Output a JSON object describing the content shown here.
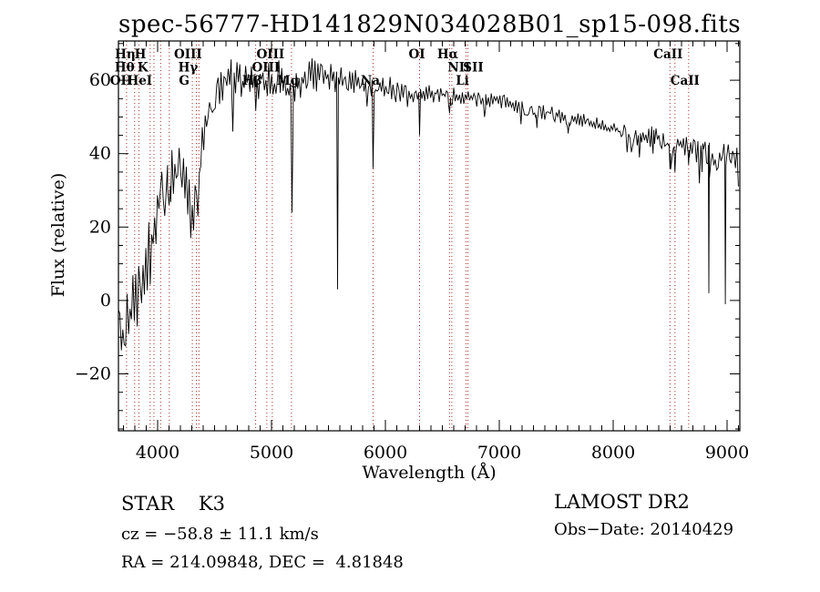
{
  "chart_data": {
    "type": "line",
    "title": "spec-56777-HD141829N034028B01_sp15-098.fits",
    "xlabel": "Wavelength (Å)",
    "ylabel": "Flux (relative)",
    "xlim": [
      3656,
      9112
    ],
    "ylim": [
      -35.5,
      70.7
    ],
    "xticks": [
      4000,
      5000,
      6000,
      7000,
      8000,
      9000
    ],
    "xtick_minor_step": 100,
    "yticks": [
      -20,
      0,
      20,
      40,
      60
    ],
    "ytick_minor_step": 5,
    "grid": false,
    "curve_color": "#000000",
    "marker_line_color": "#aa2a22",
    "seed": 11,
    "spectral_lines": [
      {
        "label": "Hη",
        "wavelength": 3835,
        "row": 1,
        "dx": -15
      },
      {
        "label": "H",
        "wavelength": 3968,
        "row": 1,
        "dx": -15
      },
      {
        "label": "Hθ",
        "wavelength": 3798,
        "row": 2,
        "dx": -11
      },
      {
        "label": "K",
        "wavelength": 3934,
        "row": 2,
        "dx": -8
      },
      {
        "label": "OII",
        "wavelength": 3727,
        "row": 3,
        "dx": -6
      },
      {
        "label": "HeI",
        "wavelength": 4026,
        "row": 3,
        "dx": -23
      },
      {
        "label": "OIII",
        "wavelength": 4363,
        "row": 1,
        "dx": -12
      },
      {
        "label": "Hγ",
        "wavelength": 4340,
        "row": 2,
        "dx": -9
      },
      {
        "label": "G",
        "wavelength": 4305,
        "row": 3,
        "dx": -9
      },
      {
        "label": "OIII",
        "wavelength": 4959,
        "row": 1,
        "dx": 4
      },
      {
        "label": "OIII",
        "wavelength": 5007,
        "row": 2,
        "dx": -7
      },
      {
        "label": "Hβ",
        "wavelength": 4861,
        "row": 3,
        "dx": -4
      },
      {
        "label": "Mg",
        "wavelength": 5175,
        "row": 3,
        "dx": -4
      },
      {
        "label": "Na",
        "wavelength": 5892,
        "row": 3,
        "dx": -3
      },
      {
        "label": "OI",
        "wavelength": 6300,
        "row": 1,
        "dx": -3
      },
      {
        "label": "Hα",
        "wavelength": 6563,
        "row": 1,
        "dx": -2
      },
      {
        "label": "NII",
        "wavelength": 6583,
        "row": 2,
        "dx": 8
      },
      {
        "label": "SII",
        "wavelength": 6724,
        "row": 2,
        "dx": 6
      },
      {
        "label": "Li",
        "wavelength": 6708,
        "row": 3,
        "dx": -4
      },
      {
        "label": "CaII",
        "wavelength": 8498,
        "row": 1,
        "dx": -2
      },
      {
        "label": "CaII",
        "wavelength": 8662,
        "row": 3,
        "dx": -4
      }
    ],
    "unlabeled_lines": [
      4102,
      8542
    ],
    "continuum": [
      [
        3656,
        -2
      ],
      [
        3678,
        -12
      ],
      [
        3700,
        -12
      ],
      [
        3727,
        -9
      ],
      [
        3760,
        -4
      ],
      [
        3800,
        1
      ],
      [
        3840,
        5
      ],
      [
        3880,
        8
      ],
      [
        3920,
        12
      ],
      [
        3955,
        16
      ],
      [
        3985,
        21
      ],
      [
        4010,
        31
      ],
      [
        4050,
        34
      ],
      [
        4090,
        31
      ],
      [
        4130,
        34
      ],
      [
        4170,
        36
      ],
      [
        4210,
        35
      ],
      [
        4250,
        31
      ],
      [
        4285,
        28
      ],
      [
        4320,
        24
      ],
      [
        4350,
        28
      ],
      [
        4380,
        38
      ],
      [
        4420,
        48
      ],
      [
        4460,
        54
      ],
      [
        4510,
        57
      ],
      [
        4560,
        59
      ],
      [
        4620,
        60
      ],
      [
        4680,
        61
      ],
      [
        4740,
        59
      ],
      [
        4800,
        60
      ],
      [
        4861,
        57
      ],
      [
        4910,
        59
      ],
      [
        4960,
        60
      ],
      [
        5010,
        61
      ],
      [
        5060,
        61
      ],
      [
        5120,
        59
      ],
      [
        5170,
        55
      ],
      [
        5220,
        58
      ],
      [
        5280,
        61
      ],
      [
        5340,
        62
      ],
      [
        5400,
        61
      ],
      [
        5460,
        62
      ],
      [
        5520,
        61
      ],
      [
        5580,
        60
      ],
      [
        5650,
        60
      ],
      [
        5720,
        60
      ],
      [
        5790,
        59
      ],
      [
        5850,
        58
      ],
      [
        5900,
        57
      ],
      [
        5960,
        58
      ],
      [
        6040,
        58
      ],
      [
        6120,
        57
      ],
      [
        6200,
        56
      ],
      [
        6280,
        55.5
      ],
      [
        6360,
        56
      ],
      [
        6440,
        57
      ],
      [
        6520,
        56
      ],
      [
        6563,
        55
      ],
      [
        6620,
        56
      ],
      [
        6700,
        55.5
      ],
      [
        6800,
        55
      ],
      [
        6870,
        54
      ],
      [
        6950,
        55
      ],
      [
        7050,
        54
      ],
      [
        7150,
        53
      ],
      [
        7250,
        52
      ],
      [
        7350,
        51.5
      ],
      [
        7450,
        51
      ],
      [
        7550,
        50
      ],
      [
        7650,
        49.5
      ],
      [
        7750,
        49
      ],
      [
        7850,
        48
      ],
      [
        7950,
        47
      ],
      [
        8050,
        46
      ],
      [
        8150,
        45
      ],
      [
        8250,
        44.5
      ],
      [
        8350,
        44.5
      ],
      [
        8450,
        43
      ],
      [
        8520,
        41.5
      ],
      [
        8600,
        42.5
      ],
      [
        8680,
        41.5
      ],
      [
        8760,
        40.5
      ],
      [
        8840,
        40
      ],
      [
        8920,
        38.5
      ],
      [
        9000,
        40
      ],
      [
        9060,
        39
      ],
      [
        9112,
        37.5
      ]
    ],
    "noise_amplitude": [
      [
        3656,
        25
      ],
      [
        3700,
        18
      ],
      [
        3750,
        13
      ],
      [
        3800,
        11
      ],
      [
        3860,
        10
      ],
      [
        3920,
        10
      ],
      [
        3970,
        9
      ],
      [
        4020,
        8
      ],
      [
        4100,
        7.5
      ],
      [
        4200,
        7
      ],
      [
        4300,
        6
      ],
      [
        4400,
        7
      ],
      [
        4500,
        6
      ],
      [
        4700,
        5.5
      ],
      [
        4900,
        5.5
      ],
      [
        5100,
        5
      ],
      [
        5300,
        4.5
      ],
      [
        5500,
        4
      ],
      [
        5700,
        3.5
      ],
      [
        5900,
        3
      ],
      [
        6100,
        3
      ],
      [
        6300,
        2.8
      ],
      [
        6500,
        2.5
      ],
      [
        6700,
        2.2
      ],
      [
        7000,
        2
      ],
      [
        7300,
        2
      ],
      [
        7600,
        2
      ],
      [
        7900,
        2.2
      ],
      [
        8100,
        2.8
      ],
      [
        8300,
        3
      ],
      [
        8500,
        3
      ],
      [
        8700,
        3.2
      ],
      [
        8900,
        3.5
      ],
      [
        9112,
        3.5
      ]
    ],
    "absorption_features": [
      [
        4101,
        26,
        14
      ],
      [
        4660,
        46,
        12
      ],
      [
        5180,
        24,
        10
      ],
      [
        5580,
        3,
        7
      ],
      [
        5892,
        36,
        9
      ],
      [
        6300,
        45,
        7
      ],
      [
        6563,
        51,
        9
      ],
      [
        6870,
        50,
        11
      ],
      [
        7190,
        48,
        9
      ],
      [
        7330,
        47,
        9
      ],
      [
        7605,
        45.5,
        11
      ],
      [
        8230,
        39,
        9
      ],
      [
        8350,
        40,
        7
      ],
      [
        8498,
        36,
        7
      ],
      [
        8542,
        35,
        7
      ],
      [
        8662,
        37,
        7
      ],
      [
        8780,
        35,
        6
      ],
      [
        8840,
        2,
        5
      ],
      [
        8985,
        -1,
        5
      ]
    ]
  },
  "annotations": {
    "class_line": "STAR    K3",
    "cz_line": "cz = −58.8 ± 11.1 km/s",
    "radec_line": "RA = 214.09848, DEC =  4.81848",
    "survey": "LAMOST DR2",
    "obsdate": "Obs−Date: 20140429"
  }
}
